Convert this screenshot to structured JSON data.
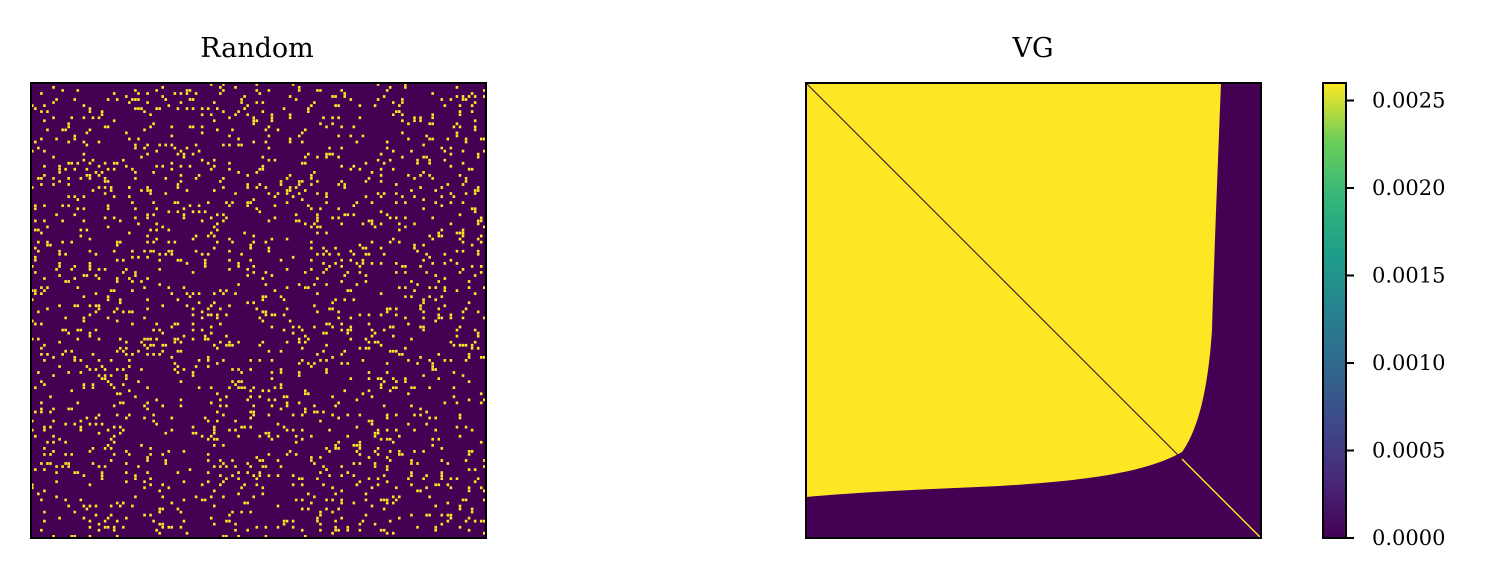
{
  "chart_data": [
    {
      "type": "heatmap",
      "title": "Random",
      "xlabel": "",
      "ylabel": "",
      "xticks": [],
      "yticks": [],
      "pattern": "sparse random binary matrix",
      "density": 0.08,
      "value_range": [
        0.0,
        0.0026
      ]
    },
    {
      "type": "heatmap",
      "title": "VG",
      "xlabel": "",
      "ylabel": "",
      "xticks": [],
      "yticks": [],
      "pattern": "upper-left region high, lower-right region low, with main diagonal line",
      "value_range": [
        0.0,
        0.0026
      ]
    }
  ],
  "colorbar": {
    "colormap": "viridis",
    "min": 0.0,
    "max": 0.0026,
    "ticks": [
      0.0,
      0.0005,
      0.001,
      0.0015,
      0.002,
      0.0025
    ],
    "tick_labels": [
      "0.0000",
      "0.0005",
      "0.0010",
      "0.0015",
      "0.0020",
      "0.0025"
    ]
  },
  "colors": {
    "low": "#440154",
    "high": "#fde725"
  }
}
